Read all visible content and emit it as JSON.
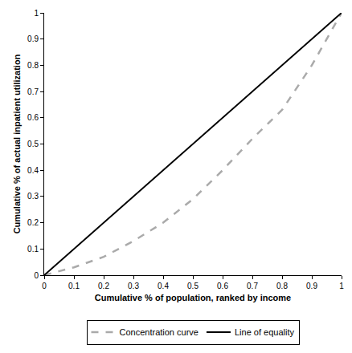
{
  "chart_data": {
    "type": "line",
    "x_label": "Cumulative % of population, ranked by income",
    "y_label": "Cumulative % of actual inpatient utilization",
    "x": [
      0,
      0.1,
      0.2,
      0.3,
      0.4,
      0.5,
      0.6,
      0.7,
      0.8,
      0.9,
      1
    ],
    "series": [
      {
        "name": "Concentration curve",
        "color": "#aaaaaa",
        "line_style": "dashed",
        "values": [
          0,
          0.03,
          0.07,
          0.13,
          0.2,
          0.29,
          0.4,
          0.52,
          0.63,
          0.8,
          1
        ]
      },
      {
        "name": "Line of equality",
        "color": "#000000",
        "line_style": "solid",
        "values": [
          0,
          0.1,
          0.2,
          0.3,
          0.4,
          0.5,
          0.6,
          0.7,
          0.8,
          0.9,
          1
        ]
      }
    ],
    "xlim": [
      0,
      1
    ],
    "ylim": [
      0,
      1
    ],
    "xticks": [
      0,
      0.1,
      0.2,
      0.3,
      0.4,
      0.5,
      0.6,
      0.7,
      0.8,
      0.9,
      1
    ],
    "yticks": [
      0,
      0.1,
      0.2,
      0.3,
      0.4,
      0.5,
      0.6,
      0.7,
      0.8,
      0.9,
      1
    ],
    "grid": false,
    "legend": "bottom"
  }
}
